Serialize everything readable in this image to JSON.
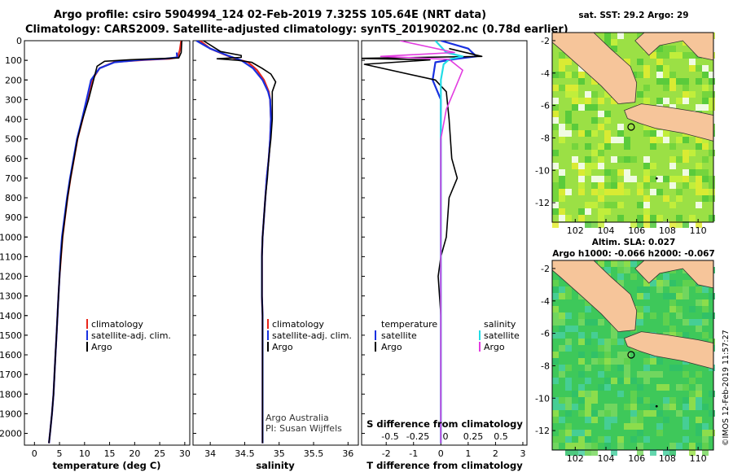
{
  "header": {
    "line1": "Argo profile: csiro 5904994_124 02-Feb-2019 7.325S 105.64E (NRT data)",
    "line2": "Climatology: CARS2009. Satellite-adjusted climatology: synTS_20190202.nc (0.78d earlier)"
  },
  "colors": {
    "argo": "#000000",
    "climatology": "#e8251b",
    "satellite": "#1830e0",
    "salinity_satellite": "#22dde6",
    "salinity_argo": "#e23ce0",
    "land": "#f6c59a"
  },
  "chart_data": [
    {
      "type": "line",
      "xlabel": "temperature (deg C)",
      "ylabel": "",
      "xlim": [
        -2,
        31
      ],
      "ylim": [
        2060,
        0
      ],
      "xticks": [
        "0",
        "5",
        "10",
        "15",
        "20",
        "25",
        "30"
      ],
      "yticks": [
        "0",
        "100",
        "200",
        "300",
        "400",
        "500",
        "600",
        "700",
        "800",
        "900",
        "1000",
        "1100",
        "1200",
        "1300",
        "1400",
        "1500",
        "1600",
        "1700",
        "1800",
        "1900",
        "2000"
      ],
      "legend": [
        "climatology",
        "satellite-adj. clim.",
        "Argo"
      ],
      "series": [
        {
          "name": "climatology",
          "points": [
            [
              29.3,
              0
            ],
            [
              29,
              50
            ],
            [
              28.6,
              85
            ],
            [
              27,
              92
            ],
            [
              22,
              98
            ],
            [
              16,
              108
            ],
            [
              13,
              140
            ],
            [
              11.5,
              200
            ],
            [
              10.5,
              300
            ],
            [
              9.6,
              400
            ],
            [
              8.6,
              500
            ],
            [
              7.9,
              600
            ],
            [
              7.2,
              700
            ],
            [
              6.6,
              800
            ],
            [
              6.1,
              900
            ],
            [
              5.6,
              1000
            ],
            [
              5.3,
              1100
            ],
            [
              5,
              1200
            ],
            [
              4.8,
              1300
            ],
            [
              4.6,
              1400
            ],
            [
              4.4,
              1500
            ],
            [
              4.2,
              1600
            ],
            [
              4,
              1700
            ],
            [
              3.8,
              1800
            ],
            [
              3.5,
              1900
            ],
            [
              3.1,
              2000
            ],
            [
              2.9,
              2050
            ]
          ]
        },
        {
          "name": "satellite-adj. clim.",
          "points": [
            [
              28.4,
              60
            ],
            [
              28.5,
              85
            ],
            [
              26,
              92
            ],
            [
              21,
              98
            ],
            [
              16,
              110
            ],
            [
              13,
              140
            ],
            [
              11.3,
              200
            ],
            [
              10.4,
              300
            ],
            [
              9.5,
              400
            ],
            [
              8.5,
              500
            ],
            [
              7.8,
              600
            ],
            [
              7.1,
              700
            ],
            [
              6.5,
              800
            ],
            [
              6,
              900
            ],
            [
              5.5,
              1000
            ],
            [
              5.2,
              1100
            ],
            [
              5,
              1200
            ],
            [
              4.8,
              1300
            ],
            [
              4.6,
              1400
            ],
            [
              4.4,
              1500
            ],
            [
              4.2,
              1600
            ],
            [
              4,
              1700
            ],
            [
              3.8,
              1800
            ],
            [
              3.5,
              1900
            ],
            [
              3.1,
              2000
            ],
            [
              2.9,
              2050
            ]
          ]
        },
        {
          "name": "Argo",
          "points": [
            [
              29.4,
              0
            ],
            [
              29.3,
              60
            ],
            [
              28.8,
              88
            ],
            [
              23,
              93
            ],
            [
              19,
              97
            ],
            [
              14,
              105
            ],
            [
              12.5,
              130
            ],
            [
              11.8,
              200
            ],
            [
              10.8,
              300
            ],
            [
              9.6,
              400
            ],
            [
              8.6,
              500
            ],
            [
              7.9,
              600
            ],
            [
              7.2,
              700
            ],
            [
              6.6,
              800
            ],
            [
              6.1,
              900
            ],
            [
              5.6,
              1000
            ],
            [
              5.3,
              1100
            ],
            [
              5,
              1200
            ],
            [
              4.8,
              1300
            ],
            [
              4.6,
              1400
            ],
            [
              4.4,
              1500
            ],
            [
              4.2,
              1600
            ],
            [
              4,
              1700
            ],
            [
              3.8,
              1800
            ],
            [
              3.5,
              1900
            ],
            [
              3.1,
              2000
            ],
            [
              2.9,
              2050
            ]
          ]
        }
      ]
    },
    {
      "type": "line",
      "xlabel": "salinity",
      "xlim": [
        33.75,
        36.15
      ],
      "ylim": [
        2060,
        0
      ],
      "xticks": [
        "34",
        "34.5",
        "35",
        "35.5",
        "36"
      ],
      "legend": [
        "climatology",
        "satellite-adj. clim.",
        "Argo"
      ],
      "series": [
        {
          "name": "climatology",
          "points": [
            [
              33.85,
              0
            ],
            [
              34.0,
              40
            ],
            [
              34.2,
              70
            ],
            [
              34.35,
              90
            ],
            [
              34.55,
              110
            ],
            [
              34.68,
              150
            ],
            [
              34.78,
              200
            ],
            [
              34.85,
              260
            ],
            [
              34.87,
              300
            ],
            [
              34.88,
              400
            ],
            [
              34.87,
              500
            ],
            [
              34.85,
              600
            ],
            [
              34.82,
              700
            ],
            [
              34.8,
              800
            ],
            [
              34.78,
              900
            ],
            [
              34.76,
              1000
            ],
            [
              34.75,
              1100
            ],
            [
              34.75,
              1200
            ],
            [
              34.75,
              1300
            ],
            [
              34.76,
              1400
            ],
            [
              34.76,
              1500
            ],
            [
              34.76,
              1600
            ],
            [
              34.76,
              1700
            ],
            [
              34.76,
              1800
            ],
            [
              34.76,
              1900
            ],
            [
              34.76,
              2000
            ],
            [
              34.76,
              2050
            ]
          ]
        },
        {
          "name": "satellite-adj. clim.",
          "points": [
            [
              33.8,
              0
            ],
            [
              34.0,
              40
            ],
            [
              34.25,
              75
            ],
            [
              34.45,
              100
            ],
            [
              34.62,
              140
            ],
            [
              34.76,
              200
            ],
            [
              34.84,
              260
            ],
            [
              34.87,
              300
            ],
            [
              34.88,
              400
            ],
            [
              34.87,
              500
            ],
            [
              34.85,
              600
            ],
            [
              34.82,
              700
            ],
            [
              34.8,
              800
            ],
            [
              34.78,
              900
            ],
            [
              34.76,
              1000
            ],
            [
              34.75,
              1100
            ],
            [
              34.75,
              1200
            ],
            [
              34.75,
              1300
            ],
            [
              34.76,
              1400
            ],
            [
              34.76,
              1500
            ],
            [
              34.76,
              1600
            ],
            [
              34.76,
              1700
            ],
            [
              34.76,
              1800
            ],
            [
              34.76,
              1900
            ],
            [
              34.76,
              2000
            ],
            [
              34.76,
              2050
            ]
          ]
        },
        {
          "name": "Argo",
          "points": [
            [
              33.9,
              0
            ],
            [
              34.15,
              55
            ],
            [
              34.45,
              75
            ],
            [
              34.45,
              85
            ],
            [
              34.1,
              92
            ],
            [
              34.4,
              100
            ],
            [
              34.6,
              110
            ],
            [
              34.75,
              140
            ],
            [
              34.88,
              170
            ],
            [
              34.95,
              210
            ],
            [
              34.9,
              260
            ],
            [
              34.9,
              300
            ],
            [
              34.9,
              400
            ],
            [
              34.88,
              500
            ],
            [
              34.85,
              600
            ],
            [
              34.83,
              700
            ],
            [
              34.8,
              800
            ],
            [
              34.78,
              900
            ],
            [
              34.76,
              1000
            ],
            [
              34.75,
              1100
            ],
            [
              34.75,
              1200
            ],
            [
              34.75,
              1300
            ],
            [
              34.76,
              1400
            ],
            [
              34.76,
              1500
            ],
            [
              34.76,
              1600
            ],
            [
              34.76,
              1700
            ],
            [
              34.76,
              1800
            ],
            [
              34.76,
              1900
            ],
            [
              34.76,
              2000
            ],
            [
              34.76,
              2050
            ]
          ]
        }
      ],
      "annotation": [
        "Argo Australia",
        "PI: Susan Wijffels"
      ]
    },
    {
      "type": "line",
      "xlabel": "T difference from climatology",
      "xlabel2": "S difference from climatology",
      "xlim": [
        -2.9,
        3.15
      ],
      "ylim": [
        2060,
        0
      ],
      "xticks": [
        "-2",
        "-1",
        "0",
        "1",
        "2",
        "3"
      ],
      "xticks2": [
        "-0.5",
        "-0.25",
        "0",
        "0.25",
        "0.5"
      ],
      "legend_left": [
        "temperature",
        "satellite",
        "Argo"
      ],
      "legend_right": [
        "salinity",
        "satellite",
        "Argo"
      ],
      "series": [
        {
          "name": "satellite",
          "points": [
            [
              0,
              0
            ],
            [
              1,
              40
            ],
            [
              1.3,
              80
            ],
            [
              0.6,
              92
            ],
            [
              -0.2,
              110
            ],
            [
              -0.3,
              200
            ],
            [
              0,
              300
            ],
            [
              0,
              2050
            ]
          ]
        },
        {
          "name": "Argo",
          "points": [
            [
              0.3,
              40
            ],
            [
              1.5,
              80
            ],
            [
              -3,
              90
            ],
            [
              -0.4,
              98
            ],
            [
              -2.8,
              120
            ],
            [
              -0.2,
              200
            ],
            [
              0.2,
              260
            ],
            [
              0.3,
              400
            ],
            [
              0.4,
              600
            ],
            [
              0.6,
              700
            ],
            [
              0.3,
              800
            ],
            [
              0.2,
              1000
            ],
            [
              0,
              1100
            ],
            [
              -0.1,
              1200
            ],
            [
              0,
              1400
            ],
            [
              0,
              2050
            ]
          ]
        },
        {
          "name": "satellite",
          "points": [
            [
              -0.2,
              0
            ],
            [
              0.2,
              60
            ],
            [
              0.8,
              80
            ],
            [
              0.3,
              95
            ],
            [
              0.1,
              120
            ],
            [
              0,
              200
            ],
            [
              0,
              300
            ],
            [
              0,
              2050
            ]
          ]
        },
        {
          "name": "Argo",
          "points": [
            [
              -1.5,
              0
            ],
            [
              0.5,
              60
            ],
            [
              -2.2,
              80
            ],
            [
              0.3,
              95
            ],
            [
              0.8,
              150
            ],
            [
              0.5,
              250
            ],
            [
              0.2,
              350
            ],
            [
              0,
              500
            ],
            [
              0,
              2050
            ]
          ]
        }
      ]
    }
  ],
  "maps": [
    {
      "title": "sat. SST: 29.2 Argo: 29",
      "xticks": [
        "102",
        "104",
        "106",
        "108",
        "110"
      ],
      "yticks": [
        "-2",
        "-4",
        "-6",
        "-8",
        "-10",
        "-12"
      ]
    },
    {
      "title": "Altim. SLA: 0.027",
      "title2": "Argo h1000: -0.066 h2000: -0.067",
      "xticks": [
        "102",
        "104",
        "106",
        "108",
        "110"
      ],
      "yticks": [
        "-2",
        "-4",
        "-6",
        "-8",
        "-10",
        "-12"
      ]
    }
  ],
  "credit": "©IMOS 12-Feb-2019 11:57:27"
}
